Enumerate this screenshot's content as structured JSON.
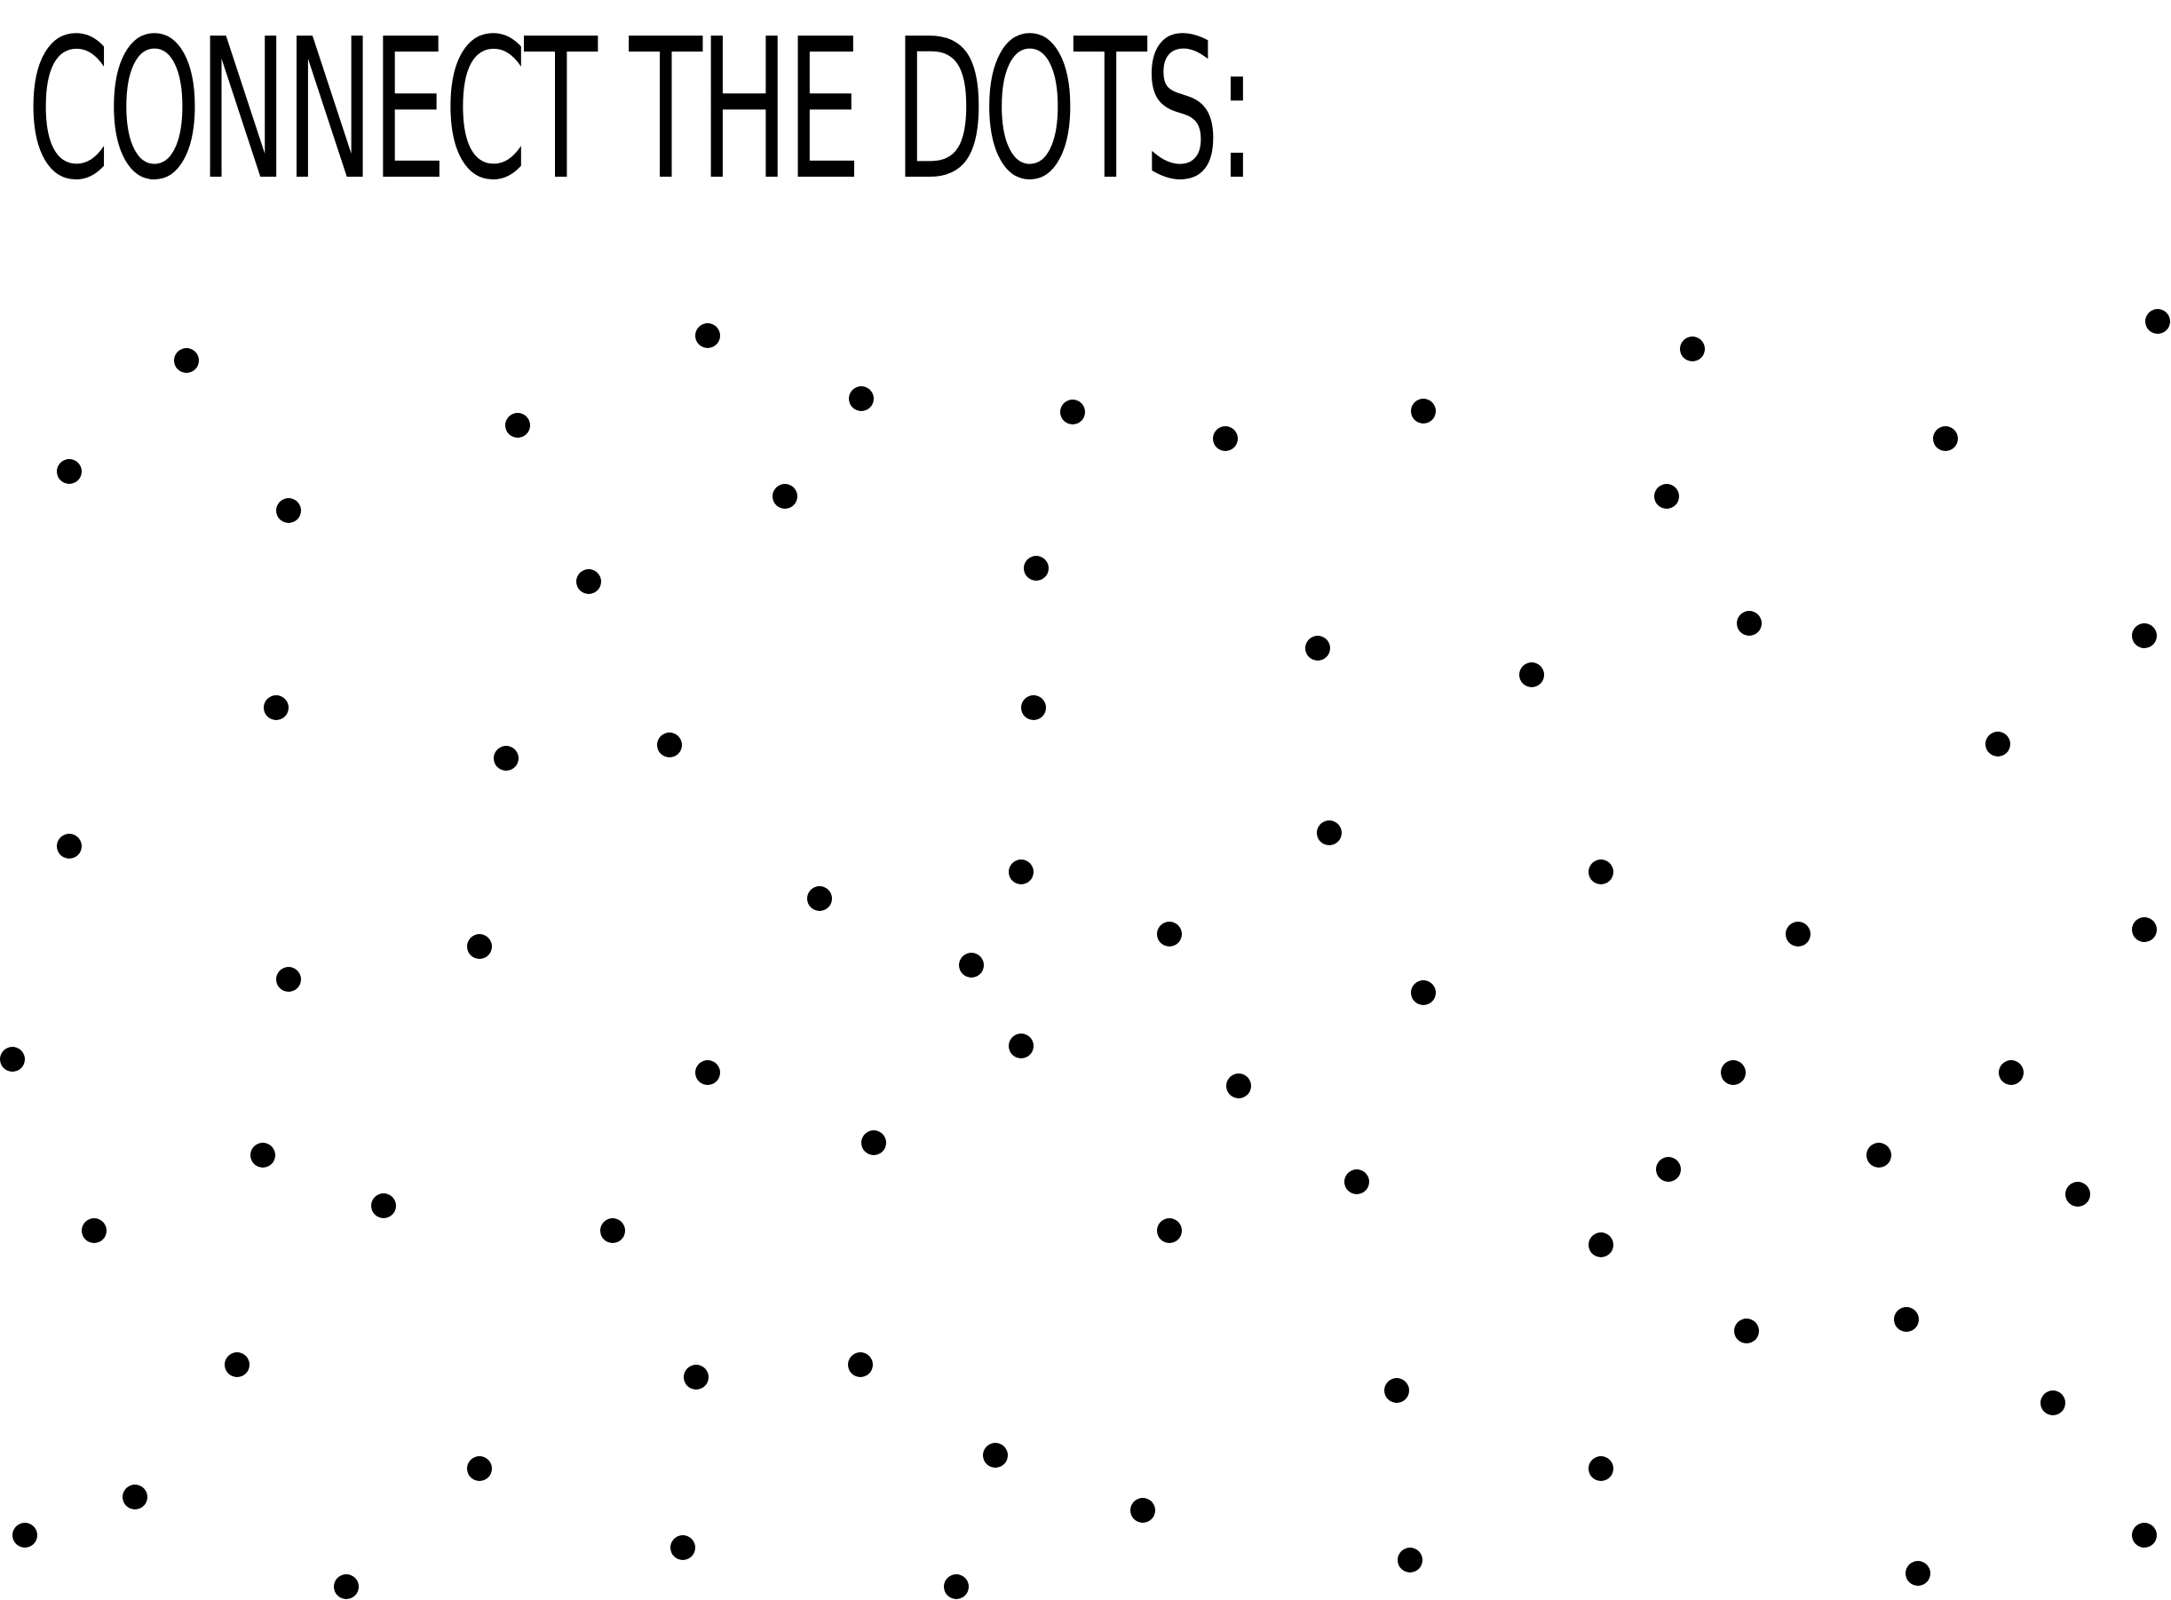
{
  "title": "CONNECT THE DOTS:",
  "colors": {
    "background": "#ffffff",
    "ink": "#000000"
  },
  "dots_count": 90
}
